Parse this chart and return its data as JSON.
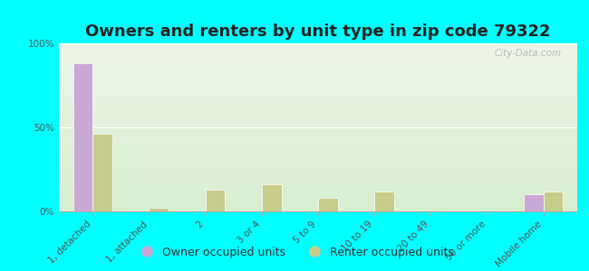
{
  "title": "Owners and renters by unit type in zip code 79322",
  "categories": [
    "1, detached",
    "1, attached",
    "2",
    "3 or 4",
    "5 to 9",
    "10 to 19",
    "20 to 49",
    "50 or more",
    "Mobile home"
  ],
  "owner_values": [
    88,
    0,
    0,
    0,
    0,
    0,
    0,
    0,
    10
  ],
  "renter_values": [
    46,
    2,
    13,
    16,
    8,
    12,
    0,
    0,
    12
  ],
  "owner_color": "#c9a8d4",
  "renter_color": "#c8cc8a",
  "background_color": "#00ffff",
  "ylim": [
    0,
    100
  ],
  "yticks": [
    0,
    50,
    100
  ],
  "ytick_labels": [
    "0%",
    "50%",
    "100%"
  ],
  "legend_owner": "Owner occupied units",
  "legend_renter": "Renter occupied units",
  "bar_width": 0.35,
  "title_fontsize": 13,
  "tick_fontsize": 7.5,
  "legend_fontsize": 9
}
